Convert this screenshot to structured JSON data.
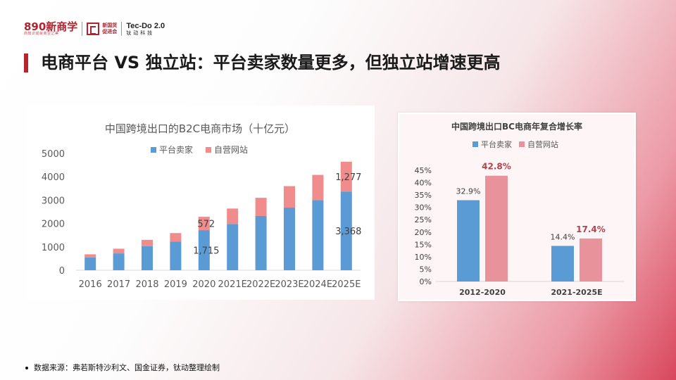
{
  "header": {
    "logo_890": "890新商学",
    "logo_890_tagline": "商知识成就商业之美",
    "logo_xgh": [
      "新国货",
      "促进会"
    ],
    "logo_tec_main": "Tec-Do 2.0",
    "logo_tec_sub": "钛动科技"
  },
  "page_title": "电商平台 VS 独立站：平台卖家数量更多，但独立站增速更高",
  "source_note": "数据来源：弗若斯特沙利文、国金证券，钛动整理绘制",
  "colors": {
    "platform": "#5b9bd5",
    "standalone": "#f08c8c",
    "standalone_right": "#e8939c",
    "accent": "#b5252f"
  },
  "chart_data": [
    {
      "type": "bar",
      "stacked": true,
      "title": "中国跨境出口的B2C电商市场（十亿元）",
      "legend_position": "top",
      "categories": [
        "2016",
        "2017",
        "2018",
        "2019",
        "2020",
        "2021E",
        "2022E",
        "2023E",
        "2024E",
        "2025E"
      ],
      "series": [
        {
          "name": "平台卖家",
          "values": [
            550,
            720,
            1030,
            1230,
            1715,
            1980,
            2320,
            2680,
            3000,
            3368
          ]
        },
        {
          "name": "自营网站",
          "values": [
            130,
            200,
            270,
            360,
            572,
            660,
            780,
            920,
            1080,
            1277
          ]
        }
      ],
      "data_labels": [
        {
          "category": "2020",
          "series": "平台卖家",
          "text": "1,715"
        },
        {
          "category": "2020",
          "series": "自营网站",
          "text": "572"
        },
        {
          "category": "2025E",
          "series": "平台卖家",
          "text": "3,368"
        },
        {
          "category": "2025E",
          "series": "自营网站",
          "text": "1,277"
        }
      ],
      "yticks": [
        "0",
        "1000",
        "2000",
        "3000",
        "4000",
        "5000"
      ],
      "ylim": [
        0,
        5000
      ],
      "grid": false
    },
    {
      "type": "bar",
      "title": "中国跨境出口BC电商年复合增长率",
      "legend_position": "top",
      "categories": [
        "2012-2020",
        "2021-2025E"
      ],
      "series": [
        {
          "name": "平台卖家",
          "values": [
            32.9,
            14.4
          ],
          "labels": [
            "32.9%",
            "14.4%"
          ]
        },
        {
          "name": "自营网站",
          "values": [
            42.8,
            17.4
          ],
          "labels": [
            "42.8%",
            "17.4%"
          ]
        }
      ],
      "yticks": [
        "0%",
        "5%",
        "10%",
        "15%",
        "20%",
        "25%",
        "30%",
        "35%",
        "40%",
        "45%"
      ],
      "ylim": [
        0,
        45
      ],
      "grid": false
    }
  ]
}
